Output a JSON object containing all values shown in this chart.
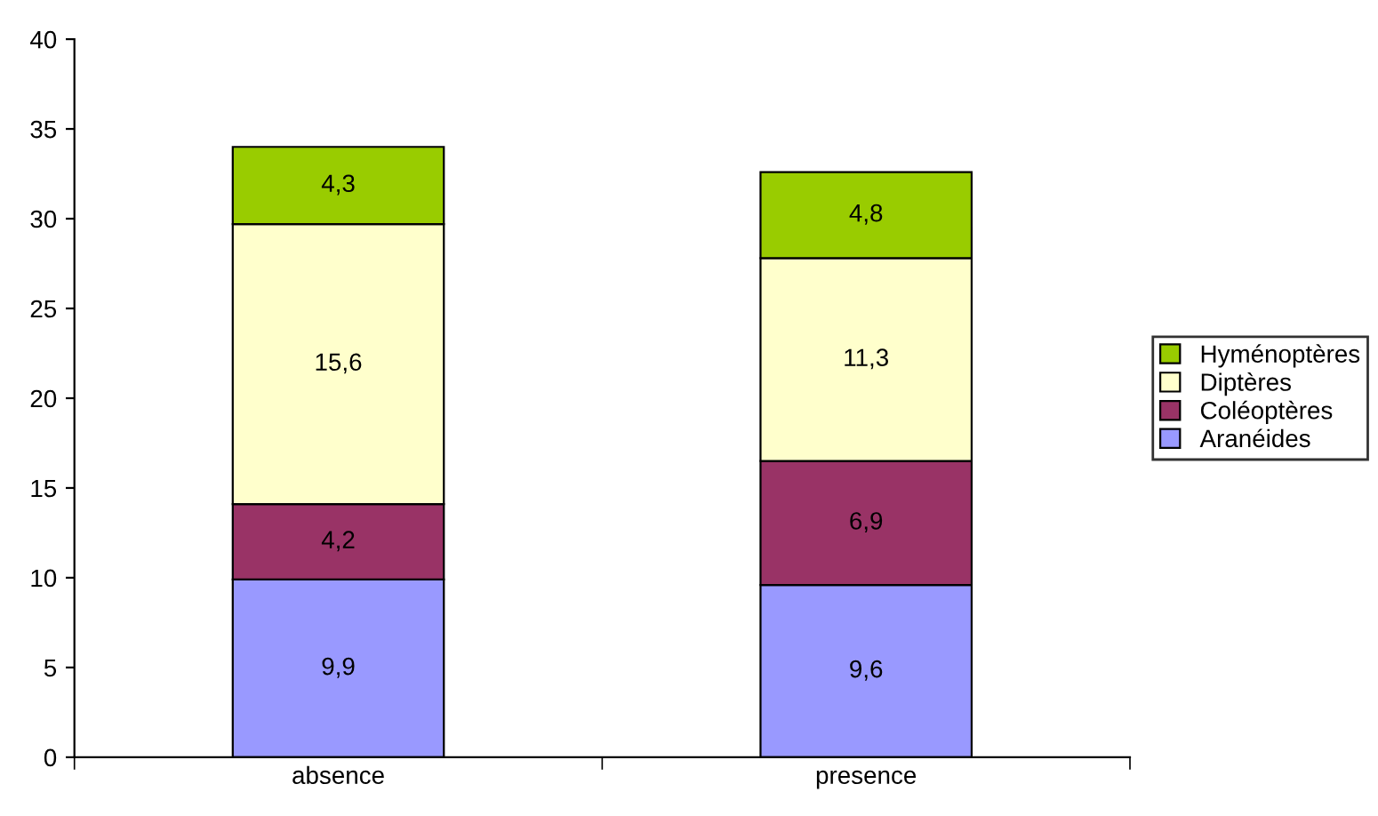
{
  "chart_data": {
    "type": "bar",
    "stacked": true,
    "categories": [
      "absence",
      "presence"
    ],
    "series": [
      {
        "name": "Aranéides",
        "color": "#9999ff",
        "values": [
          9.9,
          9.6
        ],
        "value_labels": [
          "9,9",
          "9,6"
        ]
      },
      {
        "name": "Coléoptères",
        "color": "#993366",
        "values": [
          4.2,
          6.9
        ],
        "value_labels": [
          "4,2",
          "6,9"
        ]
      },
      {
        "name": "Diptères",
        "color": "#ffffcc",
        "values": [
          15.6,
          11.3
        ],
        "value_labels": [
          "15,6",
          "11,3"
        ]
      },
      {
        "name": "Hyménoptères",
        "color": "#99cc00",
        "values": [
          4.3,
          4.8
        ],
        "value_labels": [
          "4,3",
          "4,8"
        ]
      }
    ],
    "ylim": [
      0,
      40
    ],
    "yticks": [
      0,
      5,
      10,
      15,
      20,
      25,
      30,
      35,
      40
    ],
    "grid": false,
    "legend": "right"
  }
}
